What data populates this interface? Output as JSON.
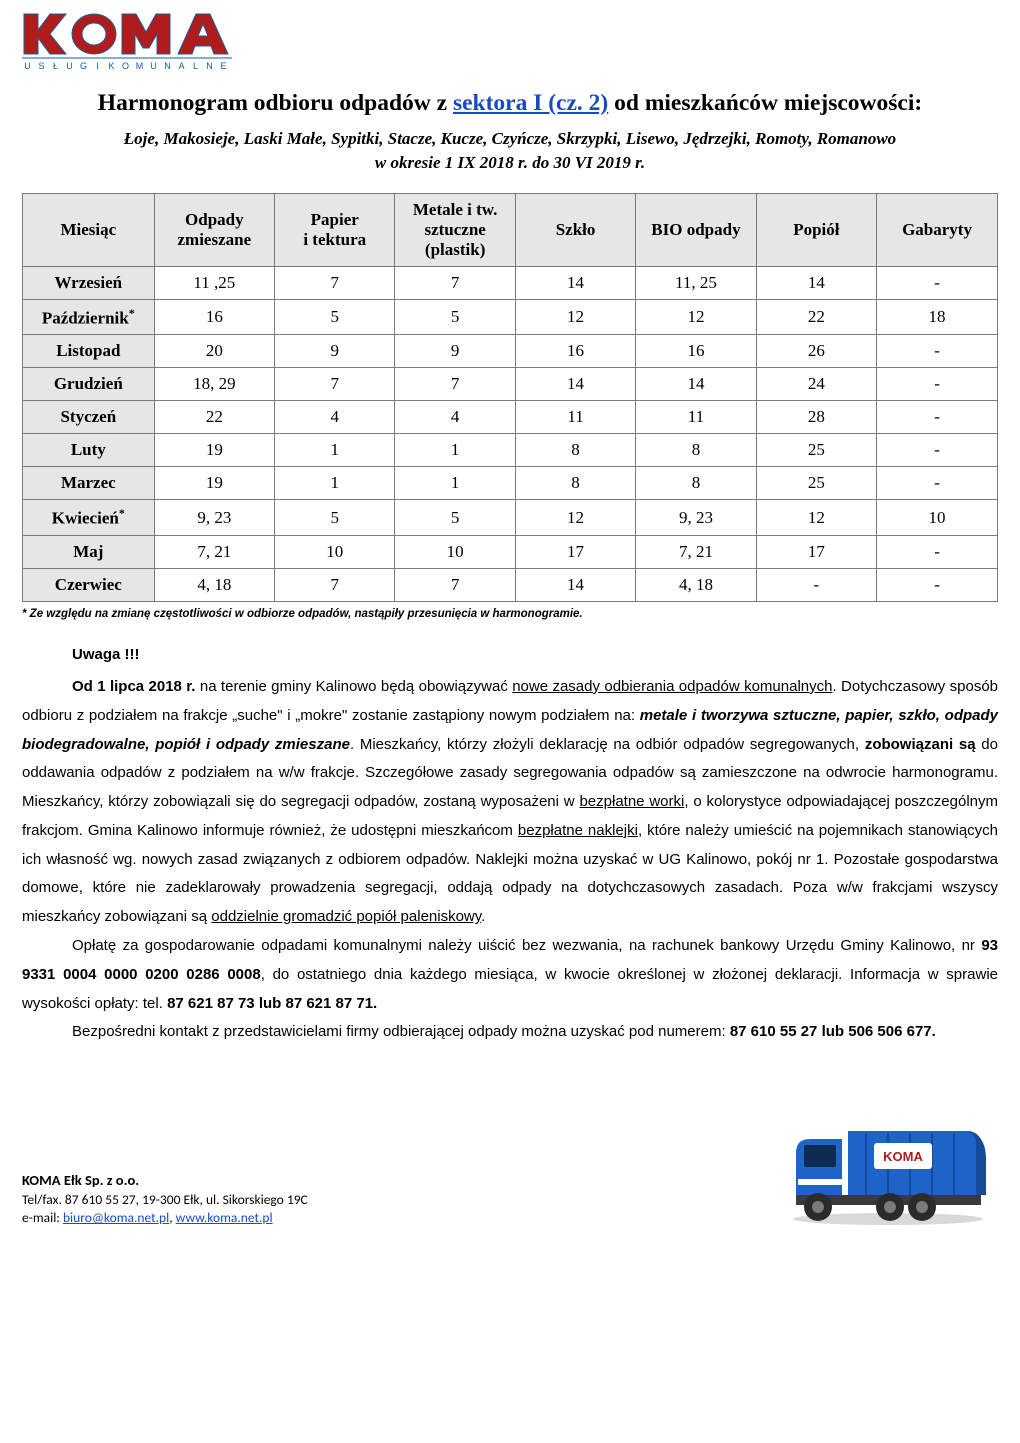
{
  "logo": {
    "name": "KOMA",
    "subtitle_chars": [
      "U",
      "S",
      "Ł",
      "U",
      "G",
      "I",
      "K",
      "O",
      "M",
      "U",
      "N",
      "A",
      "L",
      "N",
      "E"
    ],
    "primary_color": "#b01c1c",
    "secondary_color": "#1a5aa0"
  },
  "title": {
    "prefix": "Harmonogram odbioru odpadów z ",
    "link_text": "sektora I (cz. 2)",
    "suffix": " od mieszkańców miejscowości:"
  },
  "subtitle_line1": "Łoje, Makosieje, Laski Małe, Sypitki, Stacze, Kucze, Czyńcze, Skrzypki, Lisewo, Jędrzejki, Romoty, Romanowo",
  "subtitle_line2": "w okresie 1 IX 2018 r. do 30 VI 2019 r.",
  "table": {
    "columns": [
      "Miesiąc",
      "Odpady zmieszane",
      "Papier i tektura",
      "Metale i tw. sztuczne (plastik)",
      "Szkło",
      "BIO odpady",
      "Popiół",
      "Gabaryty"
    ],
    "col_widths_pct": [
      13.5,
      12.35,
      12.35,
      12.35,
      12.35,
      12.35,
      12.35,
      12.4
    ],
    "header_bg": "#e6e6e6",
    "border_color": "#7a7a7a",
    "rows": [
      {
        "month": "Wrzesień",
        "star": false,
        "cells": [
          "11 ,25",
          "7",
          "7",
          "14",
          "11, 25",
          "14",
          "-"
        ]
      },
      {
        "month": "Październik",
        "star": true,
        "cells": [
          "16",
          "5",
          "5",
          "12",
          "12",
          "22",
          "18"
        ]
      },
      {
        "month": "Listopad",
        "star": false,
        "cells": [
          "20",
          "9",
          "9",
          "16",
          "16",
          "26",
          "-"
        ]
      },
      {
        "month": "Grudzień",
        "star": false,
        "cells": [
          "18, 29",
          "7",
          "7",
          "14",
          "14",
          "24",
          "-"
        ]
      },
      {
        "month": "Styczeń",
        "star": false,
        "cells": [
          "22",
          "4",
          "4",
          "11",
          "11",
          "28",
          "-"
        ]
      },
      {
        "month": "Luty",
        "star": false,
        "cells": [
          "19",
          "1",
          "1",
          "8",
          "8",
          "25",
          "-"
        ]
      },
      {
        "month": "Marzec",
        "star": false,
        "cells": [
          "19",
          "1",
          "1",
          "8",
          "8",
          "25",
          "-"
        ]
      },
      {
        "month": "Kwiecień",
        "star": true,
        "cells": [
          "9, 23",
          "5",
          "5",
          "12",
          "9, 23",
          "12",
          "10"
        ]
      },
      {
        "month": "Maj",
        "star": false,
        "cells": [
          "7, 21",
          "10",
          "10",
          "17",
          "7, 21",
          "17",
          "-"
        ]
      },
      {
        "month": "Czerwiec",
        "star": false,
        "cells": [
          "4, 18",
          "7",
          "7",
          "14",
          "4, 18",
          "-",
          "-"
        ]
      }
    ]
  },
  "footnote": "* Ze względu na zmianę częstotliwości w odbiorze odpadów, nastąpiły przesunięcia w harmonogramie.",
  "notice_heading": "Uwaga !!!",
  "body": {
    "p1_lead": "Od 1 lipca 2018 r.",
    "p1_a": " na terenie gminy Kalinowo będą obowiązywać ",
    "p1_u1": "nowe zasady odbierania odpadów komunalnych",
    "p1_b": ". Dotychczasowy sposób odbioru z podziałem na frakcje „suche\" i „mokre\" zostanie zastąpiony nowym podziałem na: ",
    "p1_bi": "metale i tworzywa sztuczne, papier, szkło, odpady biodegradowalne, popiół i odpady zmieszane",
    "p1_c": ". Mieszkańcy, którzy złożyli deklarację na odbiór odpadów segregowanych, ",
    "p1_bold2": "zobowiązani są",
    "p1_d": " do oddawania odpadów z podziałem na w/w frakcje. Szczegółowe zasady segregowania odpadów są zamieszczone na odwrocie harmonogramu. Mieszkańcy, którzy zobowiązali się do segregacji odpadów, zostaną wyposażeni w ",
    "p1_u2": "bezpłatne worki",
    "p1_e": ", o kolorystyce odpowiadającej poszczególnym frakcjom. Gmina Kalinowo informuje również, że udostępni mieszkańcom ",
    "p1_u3": "bezpłatne naklejki",
    "p1_f": ", które należy umieścić na pojemnikach stanowiących ich własność wg. nowych zasad związanych z odbiorem odpadów. Naklejki można uzyskać w UG Kalinowo, pokój nr 1. Pozostałe gospodarstwa domowe, które nie zadeklarowały prowadzenia segregacji, oddają odpady na dotychczasowych zasadach. Poza w/w frakcjami wszyscy mieszkańcy zobowiązani są ",
    "p1_u4": "oddzielnie gromadzić popiół paleniskowy",
    "p1_g": ".",
    "p2_a": "Opłatę za gospodarowanie odpadami komunalnymi należy uiścić bez wezwania, na rachunek bankowy Urzędu Gminy Kalinowo, nr ",
    "p2_acct": "93 9331 0004 0000 0200 0286 0008",
    "p2_b": ", do ostatniego dnia każdego miesiąca, w kwocie określonej w złożonej deklaracji.  Informacja w sprawie wysokości opłaty: tel. ",
    "p2_phones": "87  621 87 73   lub   87  621 87 71.",
    "p3_a": "Bezpośredni kontakt z przedstawicielami firmy odbierającej odpady można uzyskać pod numerem: ",
    "p3_phones": "87 610 55 27 lub  506 506 677."
  },
  "company": {
    "name": "KOMA Ełk Sp. z o.o.",
    "line2": "Tel/fax. 87 610 55 27, 19-300 Ełk, ul. Sikorskiego 19C",
    "email_label": "e-mail: ",
    "email": "biuro@koma.net.pl",
    "sep": ", ",
    "web": "www.koma.net.pl"
  },
  "truck": {
    "cab_color": "#1e63c8",
    "body_color": "#1e63c8",
    "wheel_color": "#2b2b2b",
    "chassis_color": "#3a3a3a",
    "label_bg": "#ffffff",
    "label_text": "KOMA"
  }
}
